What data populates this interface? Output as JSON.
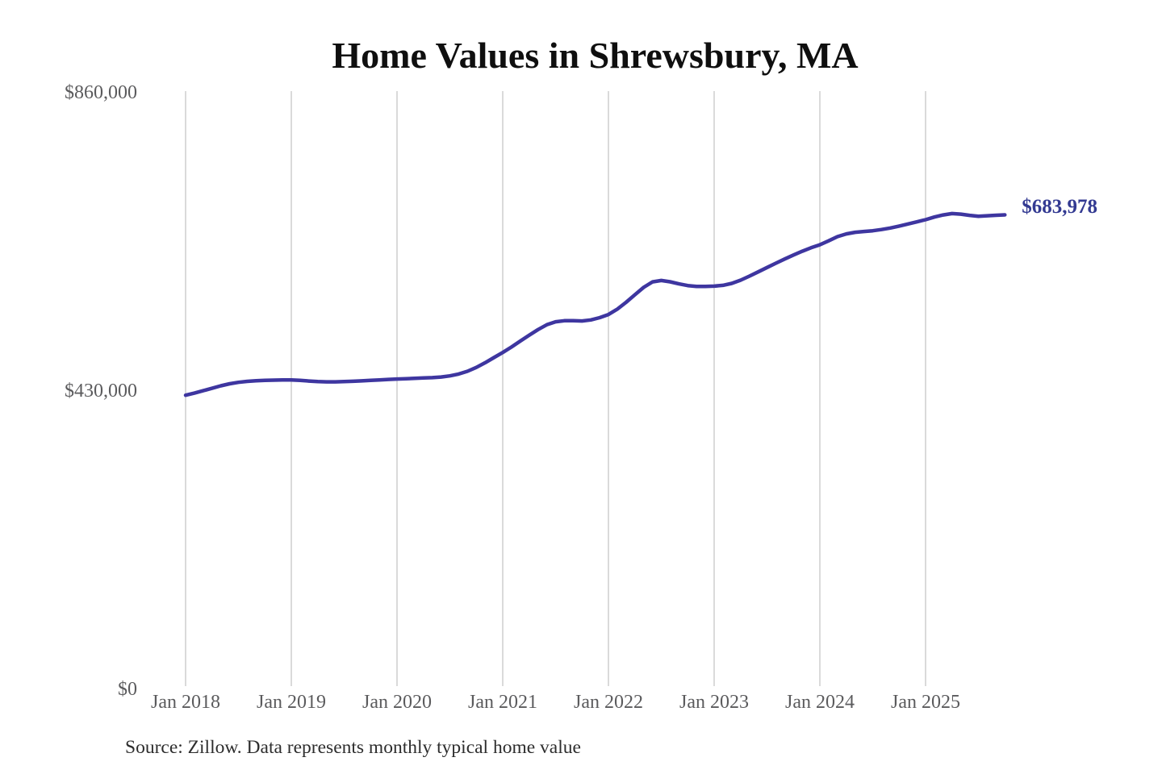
{
  "colors": {
    "line": "#3e36a0",
    "end_label": "#333a92",
    "grid": "#cdcdcd",
    "axis_text": "#5b5b5d",
    "title_text": "#0f0f0f",
    "source_text": "#2d2d2d",
    "background": "#ffffff"
  },
  "chart_data": {
    "type": "line",
    "title": "Home Values in Shrewsbury, MA",
    "source_note": "Source: Zillow. Data represents monthly typical home value",
    "series_name": "Monthly typical home value",
    "legend": "none",
    "grid": "vertical-only",
    "x_monthly_start": "2018-01",
    "x_monthly_end": "2025-10",
    "x_tick_labels": [
      "Jan 2018",
      "Jan 2019",
      "Jan 2020",
      "Jan 2021",
      "Jan 2022",
      "Jan 2023",
      "Jan 2024",
      "Jan 2025"
    ],
    "y_ticks": [
      {
        "label": "$860,000",
        "value": 860000
      },
      {
        "label": "$430,000",
        "value": 430000
      },
      {
        "label": "$0",
        "value": 0
      }
    ],
    "ylim": [
      0,
      860000
    ],
    "end_label": "$683,978",
    "end_value": 683978,
    "values": [
      424000,
      427000,
      430500,
      434000,
      437500,
      440500,
      442500,
      444000,
      444800,
      445300,
      445700,
      446000,
      446000,
      445300,
      444400,
      443600,
      443200,
      443200,
      443600,
      444100,
      444700,
      445300,
      446000,
      446700,
      447300,
      447800,
      448300,
      448800,
      449300,
      450200,
      451800,
      454500,
      458500,
      464000,
      470800,
      478200,
      485500,
      493500,
      502000,
      510500,
      518500,
      525500,
      529800,
      531300,
      531300,
      531000,
      532500,
      535800,
      540300,
      548000,
      557800,
      568800,
      579500,
      587400,
      589300,
      587500,
      584400,
      582000,
      580900,
      580800,
      581200,
      582400,
      585200,
      589800,
      595600,
      601800,
      608000,
      614200,
      620200,
      626000,
      631500,
      636500,
      640800,
      646500,
      652500,
      656500,
      658800,
      660000,
      661000,
      662800,
      665000,
      667800,
      670800,
      673800,
      677000,
      680800,
      683800,
      685800,
      685000,
      683200,
      682000,
      682600,
      683400,
      683978
    ]
  }
}
